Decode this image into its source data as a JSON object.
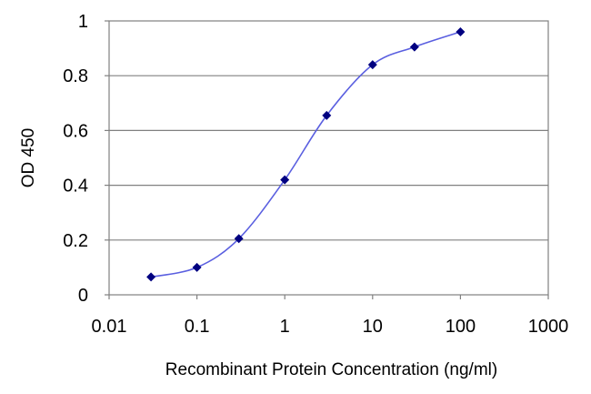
{
  "chart_data": {
    "type": "line",
    "title": "",
    "xlabel": "Recombinant Protein Concentration (ng/ml)",
    "ylabel": "OD 450",
    "x_scale": "log",
    "xlim": [
      0.01,
      1000
    ],
    "ylim": [
      0,
      1
    ],
    "x_ticks": [
      0.01,
      0.1,
      1,
      10,
      100,
      1000
    ],
    "x_tick_labels": [
      "0.01",
      "0.1",
      "1",
      "10",
      "100",
      "1000"
    ],
    "y_ticks": [
      0,
      0.2,
      0.4,
      0.6,
      0.8,
      1
    ],
    "y_tick_labels": [
      "0",
      "0.2",
      "0.4",
      "0.6",
      "0.8",
      "1"
    ],
    "grid": "horizontal",
    "legend": "none",
    "series": [
      {
        "x": [
          0.03,
          0.1,
          0.3,
          1,
          3,
          10,
          30,
          100
        ],
        "y": [
          0.065,
          0.1,
          0.205,
          0.42,
          0.655,
          0.84,
          0.905,
          0.96
        ]
      }
    ],
    "colors": {
      "line": "#5a5fe0",
      "marker": "#000080",
      "grid": "#808080",
      "frame": "#808080"
    }
  }
}
